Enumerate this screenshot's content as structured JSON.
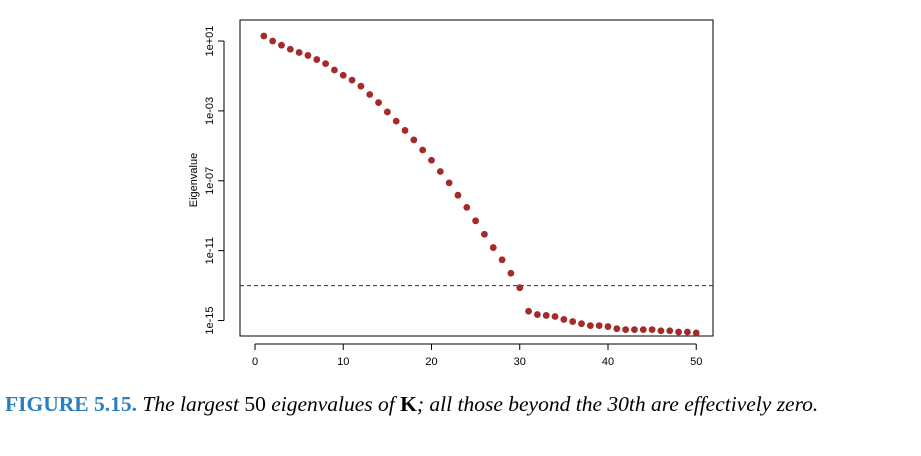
{
  "chart_data": {
    "type": "scatter",
    "y_label": "Eigenvalue",
    "log_y": true,
    "color": "#a52a2a",
    "x": [
      1,
      2,
      3,
      4,
      5,
      6,
      7,
      8,
      9,
      10,
      11,
      12,
      13,
      14,
      15,
      16,
      17,
      18,
      19,
      20,
      21,
      22,
      23,
      24,
      25,
      26,
      27,
      28,
      29,
      30,
      31,
      32,
      33,
      34,
      35,
      36,
      37,
      38,
      39,
      40,
      41,
      42,
      43,
      44,
      45,
      46,
      47,
      48,
      49,
      50
    ],
    "values": [
      19.5,
      10,
      5.8,
      3.4,
      2.2,
      1.5,
      0.87,
      0.51,
      0.22,
      0.11,
      0.058,
      0.026,
      0.0087,
      0.003,
      0.00087,
      0.00026,
      7.6e-05,
      2.2e-05,
      5.8e-06,
      1.5e-06,
      3.4e-07,
      7.6e-08,
      1.5e-08,
      3e-09,
      5.1e-10,
      8.7e-11,
      1.5e-11,
      3e-12,
      5.1e-13,
      7.6e-14,
      3.4e-15,
      2.2e-15,
      1.95e-15,
      1.7e-15,
      1.15e-15,
      8.7e-16,
      6.6e-16,
      5.1e-16,
      5.1e-16,
      4.5e-16,
      3.4e-16,
      3e-16,
      3e-16,
      3e-16,
      3e-16,
      2.6e-16,
      2.6e-16,
      2.2e-16,
      2.2e-16,
      1.95e-16
    ],
    "xlim": [
      -1.7,
      51.9
    ],
    "xticks": [
      0,
      10,
      20,
      30,
      40,
      50
    ],
    "ylim": [
      1.3e-16,
      160
    ],
    "yticks": [
      {
        "value": 10,
        "label": "1e+01"
      },
      {
        "value": 0.001,
        "label": "1e-03"
      },
      {
        "value": 1e-07,
        "label": "1e-07"
      },
      {
        "value": 1e-11,
        "label": "1e-11"
      },
      {
        "value": 1e-15,
        "label": "1e-15"
      }
    ],
    "reference_line": 1e-13
  },
  "caption": {
    "label": "FIGURE 5.15.",
    "text_1": "The largest",
    "number": "50",
    "text_2": "eigenvalues of",
    "symbol": "K",
    "text_3": "; all those beyond the 30th are effectively zero."
  }
}
